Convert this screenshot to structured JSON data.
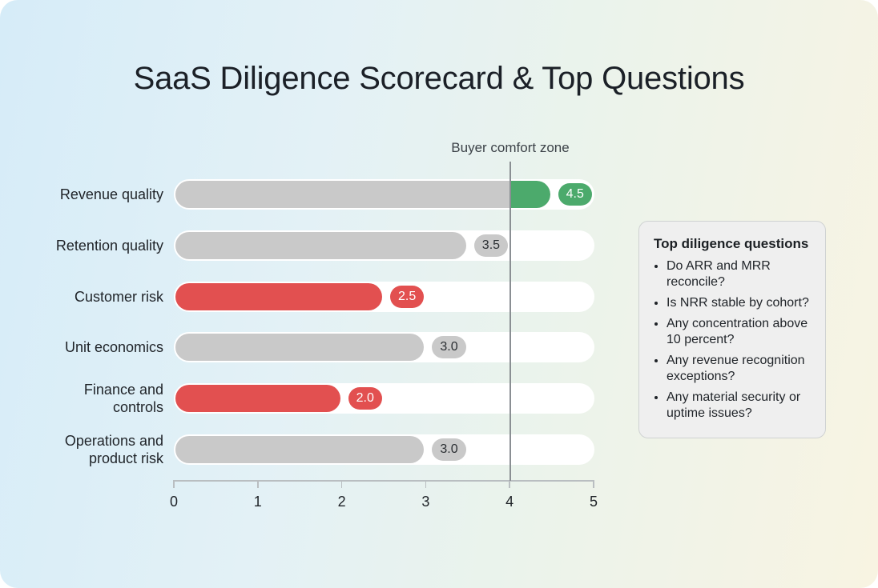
{
  "title": "SaaS Diligence Scorecard & Top Questions",
  "comfort_zone": {
    "label": "Buyer comfort zone",
    "value": 4
  },
  "colors": {
    "neutral": "#c9c9c9",
    "risk": "#e25050",
    "strength": "#4caa6c",
    "track": "#ffffff"
  },
  "rows": [
    {
      "label_lines": [
        "Revenue quality"
      ],
      "value": 4.5,
      "value_label": "4.5",
      "status": "strength"
    },
    {
      "label_lines": [
        "Retention quality"
      ],
      "value": 3.5,
      "value_label": "3.5",
      "status": "neutral"
    },
    {
      "label_lines": [
        "Customer risk"
      ],
      "value": 2.5,
      "value_label": "2.5",
      "status": "risk"
    },
    {
      "label_lines": [
        "Unit economics"
      ],
      "value": 3.0,
      "value_label": "3.0",
      "status": "neutral"
    },
    {
      "label_lines": [
        "Finance and",
        "controls"
      ],
      "value": 2.0,
      "value_label": "2.0",
      "status": "risk"
    },
    {
      "label_lines": [
        "Operations and",
        "product risk"
      ],
      "value": 3.0,
      "value_label": "3.0",
      "status": "neutral"
    }
  ],
  "axis": {
    "ticks": [
      "0",
      "1",
      "2",
      "3",
      "4",
      "5"
    ]
  },
  "panel": {
    "title": "Top diligence questions",
    "items": [
      "Do ARR and MRR reconcile?",
      "Is NRR stable by cohort?",
      "Any concentration above 10 percent?",
      "Any revenue recognition exceptions?",
      "Any material security or uptime issues?"
    ]
  },
  "chart_data": {
    "type": "bar",
    "orientation": "horizontal",
    "title": "SaaS Diligence Scorecard & Top Questions",
    "categories": [
      "Revenue quality",
      "Retention quality",
      "Customer risk",
      "Unit economics",
      "Finance and controls",
      "Operations and product risk"
    ],
    "values": [
      4.5,
      3.5,
      2.5,
      3.0,
      2.0,
      3.0
    ],
    "bar_colors": [
      "#4caa6c (above 4) / #c9c9c9",
      "#c9c9c9",
      "#e25050",
      "#c9c9c9",
      "#e25050",
      "#c9c9c9"
    ],
    "xlabel": "",
    "ylabel": "",
    "xlim": [
      0,
      5
    ],
    "xticks": [
      0,
      1,
      2,
      3,
      4,
      5
    ],
    "reference_line": {
      "x": 4,
      "label": "Buyer comfort zone"
    },
    "data_labels": [
      "4.5",
      "3.5",
      "2.5",
      "3.0",
      "2.0",
      "3.0"
    ],
    "grid": false,
    "legend": null,
    "annotations": [
      {
        "type": "text-panel",
        "title": "Top diligence questions",
        "items": [
          "Do ARR and MRR reconcile?",
          "Is NRR stable by cohort?",
          "Any concentration above 10 percent?",
          "Any revenue recognition exceptions?",
          "Any material security or uptime issues?"
        ]
      }
    ]
  }
}
